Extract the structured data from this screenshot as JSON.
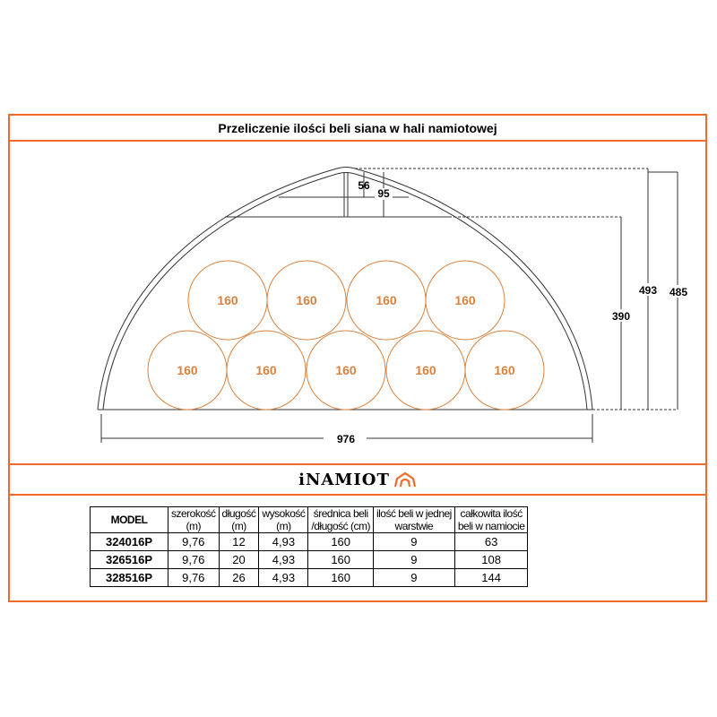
{
  "title": "Przeliczenie ilości beli siana w hali namiotowej",
  "drawing": {
    "bale_label": "160",
    "bales_top_row": 4,
    "bales_bottom_row": 5,
    "dimensions": {
      "width": "976",
      "height_total": "493",
      "height_side": "485",
      "height_truss": "390",
      "truss_small": "56",
      "truss_large": "95"
    },
    "colors": {
      "bale": "#d9823f",
      "frame": "#f26a2a"
    }
  },
  "logo": {
    "text": "iNAMIOT",
    "icon": "tent-house-icon"
  },
  "table": {
    "headers": [
      [
        "MODEL",
        ""
      ],
      [
        "szerokość",
        "(m)"
      ],
      [
        "długość",
        "(m)"
      ],
      [
        "wysokość",
        "(m)"
      ],
      [
        "średnica beli",
        "/długość (cm)"
      ],
      [
        "ilość beli w jednej",
        "warstwie"
      ],
      [
        "całkowita ilość",
        "beli w namiocie"
      ]
    ],
    "rows": [
      [
        "324016P",
        "9,76",
        "12",
        "4,93",
        "160",
        "9",
        "63"
      ],
      [
        "326516P",
        "9,76",
        "20",
        "4,93",
        "160",
        "9",
        "108"
      ],
      [
        "328516P",
        "9,76",
        "26",
        "4,93",
        "160",
        "9",
        "144"
      ]
    ]
  }
}
